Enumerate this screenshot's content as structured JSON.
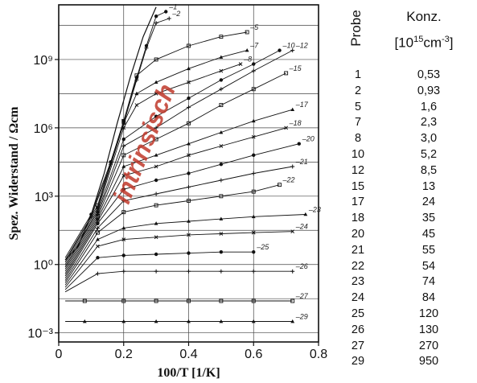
{
  "chart_data": {
    "type": "line",
    "xlabel": "100/T [1/K]",
    "ylabel": "Spez. Widerstand / Ωcm",
    "x_ticks": [
      "0",
      "0.2",
      "0.4",
      "0.6",
      "0.8"
    ],
    "y_ticks": [
      "10⁻³",
      "10⁰",
      "10³",
      "10⁶",
      "10⁹"
    ],
    "xlim": [
      0,
      0.8
    ],
    "ylim_log10": [
      -3.4,
      11.4
    ],
    "y_scale": "log",
    "grid": true,
    "annotation": "intrinsisch",
    "annotation_color": "#c0392b",
    "intrinsic_curve": {
      "x": [
        0.02,
        0.06,
        0.1,
        0.14,
        0.18,
        0.22,
        0.26,
        0.3
      ],
      "y_log10": [
        0.2,
        0.8,
        2.2,
        4.0,
        6.2,
        8.2,
        10.0,
        11.3
      ]
    },
    "series": [
      {
        "name": "1",
        "x": [
          0.02,
          0.1,
          0.16,
          0.2,
          0.24,
          0.27,
          0.3,
          0.33
        ],
        "y_log10": [
          0.3,
          2.2,
          4.5,
          6.3,
          8.2,
          9.6,
          10.9,
          11.1
        ]
      },
      {
        "name": "2",
        "x": [
          0.02,
          0.1,
          0.16,
          0.2,
          0.24,
          0.27,
          0.3,
          0.34
        ],
        "y_log10": [
          0.2,
          2.1,
          4.4,
          6.2,
          8.1,
          9.5,
          10.6,
          10.8
        ]
      },
      {
        "name": "5",
        "x": [
          0.02,
          0.12,
          0.2,
          0.24,
          0.3,
          0.4,
          0.5,
          0.58
        ],
        "y_log10": [
          0.1,
          2.6,
          6.3,
          8.3,
          9.0,
          9.6,
          10.0,
          10.2
        ]
      },
      {
        "name": "7",
        "x": [
          0.02,
          0.12,
          0.2,
          0.24,
          0.3,
          0.4,
          0.5,
          0.58
        ],
        "y_log10": [
          0.0,
          2.5,
          6.2,
          7.5,
          8.0,
          8.6,
          9.1,
          9.4
        ]
      },
      {
        "name": "8",
        "x": [
          0.02,
          0.12,
          0.2,
          0.24,
          0.3,
          0.4,
          0.5,
          0.56
        ],
        "y_log10": [
          -0.1,
          2.4,
          6.0,
          7.0,
          7.5,
          8.0,
          8.5,
          8.8
        ]
      },
      {
        "name": "10",
        "x": [
          0.02,
          0.12,
          0.2,
          0.3,
          0.4,
          0.5,
          0.6,
          0.68
        ],
        "y_log10": [
          -0.1,
          2.3,
          5.5,
          6.5,
          7.3,
          8.1,
          8.8,
          9.4
        ]
      },
      {
        "name": "12",
        "x": [
          0.02,
          0.12,
          0.2,
          0.3,
          0.4,
          0.5,
          0.6,
          0.72
        ],
        "y_log10": [
          -0.2,
          2.2,
          5.2,
          6.0,
          6.9,
          7.7,
          8.5,
          9.4
        ]
      },
      {
        "name": "15",
        "x": [
          0.02,
          0.12,
          0.2,
          0.3,
          0.4,
          0.5,
          0.6,
          0.7
        ],
        "y_log10": [
          -0.3,
          2.1,
          4.8,
          5.5,
          6.2,
          7.0,
          7.7,
          8.4
        ]
      },
      {
        "name": "17",
        "x": [
          0.02,
          0.12,
          0.2,
          0.3,
          0.4,
          0.5,
          0.6,
          0.72
        ],
        "y_log10": [
          -0.4,
          2.0,
          4.3,
          4.8,
          5.3,
          5.8,
          6.3,
          6.8
        ]
      },
      {
        "name": "18",
        "x": [
          0.02,
          0.12,
          0.2,
          0.3,
          0.4,
          0.5,
          0.6,
          0.7
        ],
        "y_log10": [
          -0.5,
          1.9,
          3.9,
          4.3,
          4.8,
          5.2,
          5.6,
          6.0
        ]
      },
      {
        "name": "20",
        "x": [
          0.02,
          0.12,
          0.2,
          0.3,
          0.4,
          0.5,
          0.6,
          0.74
        ],
        "y_log10": [
          -0.6,
          1.8,
          3.3,
          3.7,
          4.0,
          4.4,
          4.8,
          5.3
        ]
      },
      {
        "name": "21",
        "x": [
          0.02,
          0.12,
          0.2,
          0.3,
          0.4,
          0.5,
          0.6,
          0.72
        ],
        "y_log10": [
          -0.7,
          1.6,
          2.8,
          3.1,
          3.4,
          3.7,
          4.0,
          4.3
        ]
      },
      {
        "name": "22",
        "x": [
          0.02,
          0.12,
          0.2,
          0.3,
          0.4,
          0.5,
          0.6,
          0.68
        ],
        "y_log10": [
          -0.8,
          1.4,
          2.3,
          2.6,
          2.8,
          3.0,
          3.2,
          3.5
        ]
      },
      {
        "name": "23",
        "x": [
          0.02,
          0.12,
          0.2,
          0.3,
          0.4,
          0.5,
          0.6,
          0.76
        ],
        "y_log10": [
          -0.9,
          1.1,
          1.6,
          1.8,
          1.9,
          2.0,
          2.1,
          2.2
        ]
      },
      {
        "name": "24",
        "x": [
          0.02,
          0.12,
          0.2,
          0.3,
          0.4,
          0.5,
          0.6,
          0.72
        ],
        "y_log10": [
          -1.0,
          0.8,
          1.1,
          1.2,
          1.3,
          1.35,
          1.4,
          1.45
        ]
      },
      {
        "name": "25",
        "x": [
          0.02,
          0.12,
          0.2,
          0.3,
          0.4,
          0.5,
          0.6
        ],
        "y_log10": [
          -1.1,
          0.3,
          0.4,
          0.45,
          0.5,
          0.55,
          0.55
        ]
      },
      {
        "name": "26",
        "x": [
          0.02,
          0.12,
          0.2,
          0.3,
          0.4,
          0.5,
          0.6,
          0.72
        ],
        "y_log10": [
          -1.2,
          -0.4,
          -0.3,
          -0.3,
          -0.3,
          -0.3,
          -0.3,
          -0.3
        ]
      },
      {
        "name": "27",
        "x": [
          0.02,
          0.08,
          0.2,
          0.3,
          0.4,
          0.5,
          0.6,
          0.72
        ],
        "y_log10": [
          -1.6,
          -1.6,
          -1.6,
          -1.6,
          -1.6,
          -1.6,
          -1.6,
          -1.6
        ]
      },
      {
        "name": "29",
        "x": [
          0.02,
          0.08,
          0.2,
          0.3,
          0.4,
          0.5,
          0.6,
          0.72
        ],
        "y_log10": [
          -2.5,
          -2.5,
          -2.5,
          -2.5,
          -2.5,
          -2.5,
          -2.5,
          -2.5
        ]
      }
    ]
  },
  "table": {
    "probe_header": "Probe",
    "konz_header_line1": "Konz.",
    "konz_unit_prefix": "[10",
    "konz_unit_exp": "15",
    "konz_unit_mid": "cm",
    "konz_unit_exp2": "-3",
    "konz_unit_suffix": "]",
    "rows": [
      {
        "probe": "1",
        "konz": "0,53"
      },
      {
        "probe": "2",
        "konz": "0,93"
      },
      {
        "probe": "5",
        "konz": "1,6"
      },
      {
        "probe": "7",
        "konz": "2,3"
      },
      {
        "probe": "8",
        "konz": "3,0"
      },
      {
        "probe": "10",
        "konz": "5,2"
      },
      {
        "probe": "12",
        "konz": "8,5"
      },
      {
        "probe": "15",
        "konz": "13"
      },
      {
        "probe": "17",
        "konz": "24"
      },
      {
        "probe": "18",
        "konz": "35"
      },
      {
        "probe": "20",
        "konz": "45"
      },
      {
        "probe": "21",
        "konz": "55"
      },
      {
        "probe": "22",
        "konz": "54"
      },
      {
        "probe": "23",
        "konz": "74"
      },
      {
        "probe": "24",
        "konz": "84"
      },
      {
        "probe": "25",
        "konz": "120"
      },
      {
        "probe": "26",
        "konz": "130"
      },
      {
        "probe": "27",
        "konz": "270"
      },
      {
        "probe": "29",
        "konz": "950"
      }
    ]
  }
}
